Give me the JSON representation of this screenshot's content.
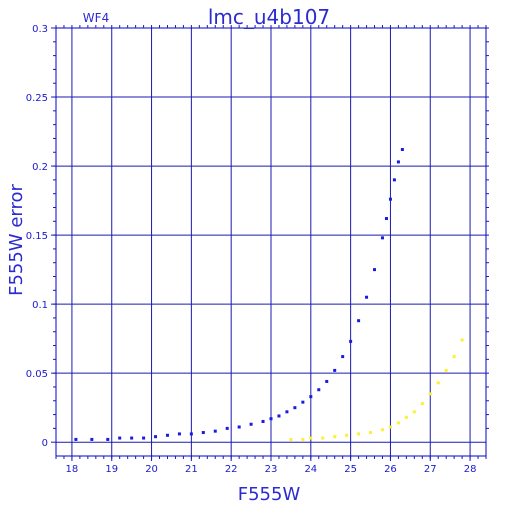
{
  "chart_data": {
    "type": "scatter",
    "title": "lmc_u4b107",
    "annotation": "WF4",
    "xlabel": "F555W",
    "ylabel": "F555W error",
    "xlim": [
      17.6,
      28.4
    ],
    "ylim": [
      -0.01,
      0.3
    ],
    "xticks": [
      "18",
      "19",
      "20",
      "21",
      "22",
      "23",
      "24",
      "25",
      "26",
      "27",
      "28"
    ],
    "yticks": [
      "0",
      "0.05",
      "0.1",
      "0.15",
      "0.2",
      "0.25",
      "0.3"
    ],
    "grid": true,
    "colors": {
      "frame": "#0000cc",
      "grid": "#1a1ab0",
      "text": "#2b2bd0",
      "main": "#1a1ae0",
      "secondary": "#ffee33"
    },
    "series": [
      {
        "color": "#1a1ae0",
        "x": [
          18.1,
          18.5,
          18.9,
          19.2,
          19.5,
          19.8,
          20.1,
          20.4,
          20.7,
          21.0,
          21.3,
          21.6,
          21.9,
          22.2,
          22.5,
          22.8,
          23.0,
          23.2,
          23.4,
          23.6,
          23.8,
          24.0,
          24.2,
          24.4,
          24.6,
          24.8,
          25.0,
          25.2,
          25.4,
          25.6,
          25.8,
          25.9,
          26.0,
          26.1,
          26.2,
          26.3
        ],
        "y": [
          0.002,
          0.002,
          0.002,
          0.003,
          0.003,
          0.003,
          0.004,
          0.005,
          0.006,
          0.006,
          0.007,
          0.008,
          0.01,
          0.011,
          0.013,
          0.015,
          0.017,
          0.019,
          0.022,
          0.025,
          0.029,
          0.033,
          0.038,
          0.044,
          0.052,
          0.062,
          0.073,
          0.088,
          0.105,
          0.125,
          0.148,
          0.162,
          0.176,
          0.19,
          0.203,
          0.212
        ]
      },
      {
        "color": "#ffee33",
        "x": [
          23.5,
          23.8,
          24.0,
          24.3,
          24.6,
          24.9,
          25.2,
          25.5,
          25.8,
          26.0,
          26.2,
          26.4,
          26.6,
          26.8,
          27.0,
          27.2,
          27.4,
          27.6,
          27.8
        ],
        "y": [
          0.002,
          0.002,
          0.003,
          0.003,
          0.004,
          0.005,
          0.006,
          0.007,
          0.009,
          0.011,
          0.014,
          0.018,
          0.022,
          0.028,
          0.035,
          0.043,
          0.052,
          0.062,
          0.074
        ]
      }
    ]
  }
}
